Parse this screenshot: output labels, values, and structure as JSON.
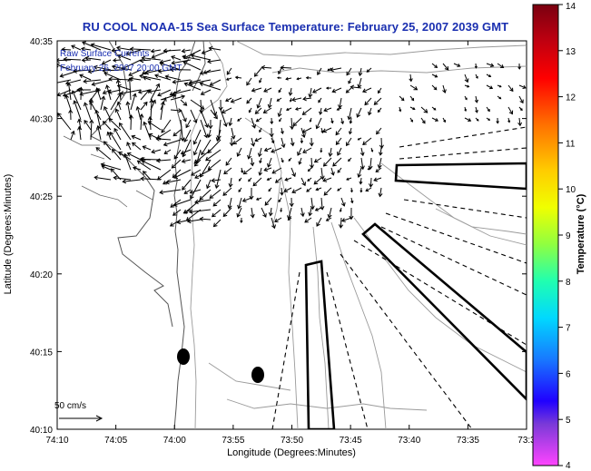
{
  "title": "RU COOL  NOAA-15  Sea Surface Temperature:  February 25, 2007 2039 GMT",
  "annotation": {
    "line1": "Raw Surface Currents",
    "line2": "February 26, 2007 20:00 GMT"
  },
  "scale_label": "50 cm/s",
  "axes": {
    "xlabel": "Longitude (Degrees:Minutes)",
    "ylabel": "Latitude (Degrees:Minutes)",
    "xticks": [
      "74:10",
      "74:05",
      "74:00",
      "73:55",
      "73:50",
      "73:45",
      "73:40",
      "73:35",
      "73:3"
    ],
    "yticks": [
      "40:35",
      "40:30",
      "40:25",
      "40:20",
      "40:15",
      "40:10"
    ]
  },
  "colorbar": {
    "label": "Temperature (°C)",
    "ticks": [
      "14",
      "13",
      "12",
      "11",
      "10",
      "9",
      "8",
      "7",
      "6",
      "5",
      "4"
    ],
    "colors": [
      "#b0001a",
      "#ff0000",
      "#ff6a00",
      "#ffb000",
      "#ffee00",
      "#9bff3a",
      "#00f5c0",
      "#00c8ff",
      "#2a6cff",
      "#1a00ff",
      "#8a2be2",
      "#ff44ff"
    ]
  }
}
